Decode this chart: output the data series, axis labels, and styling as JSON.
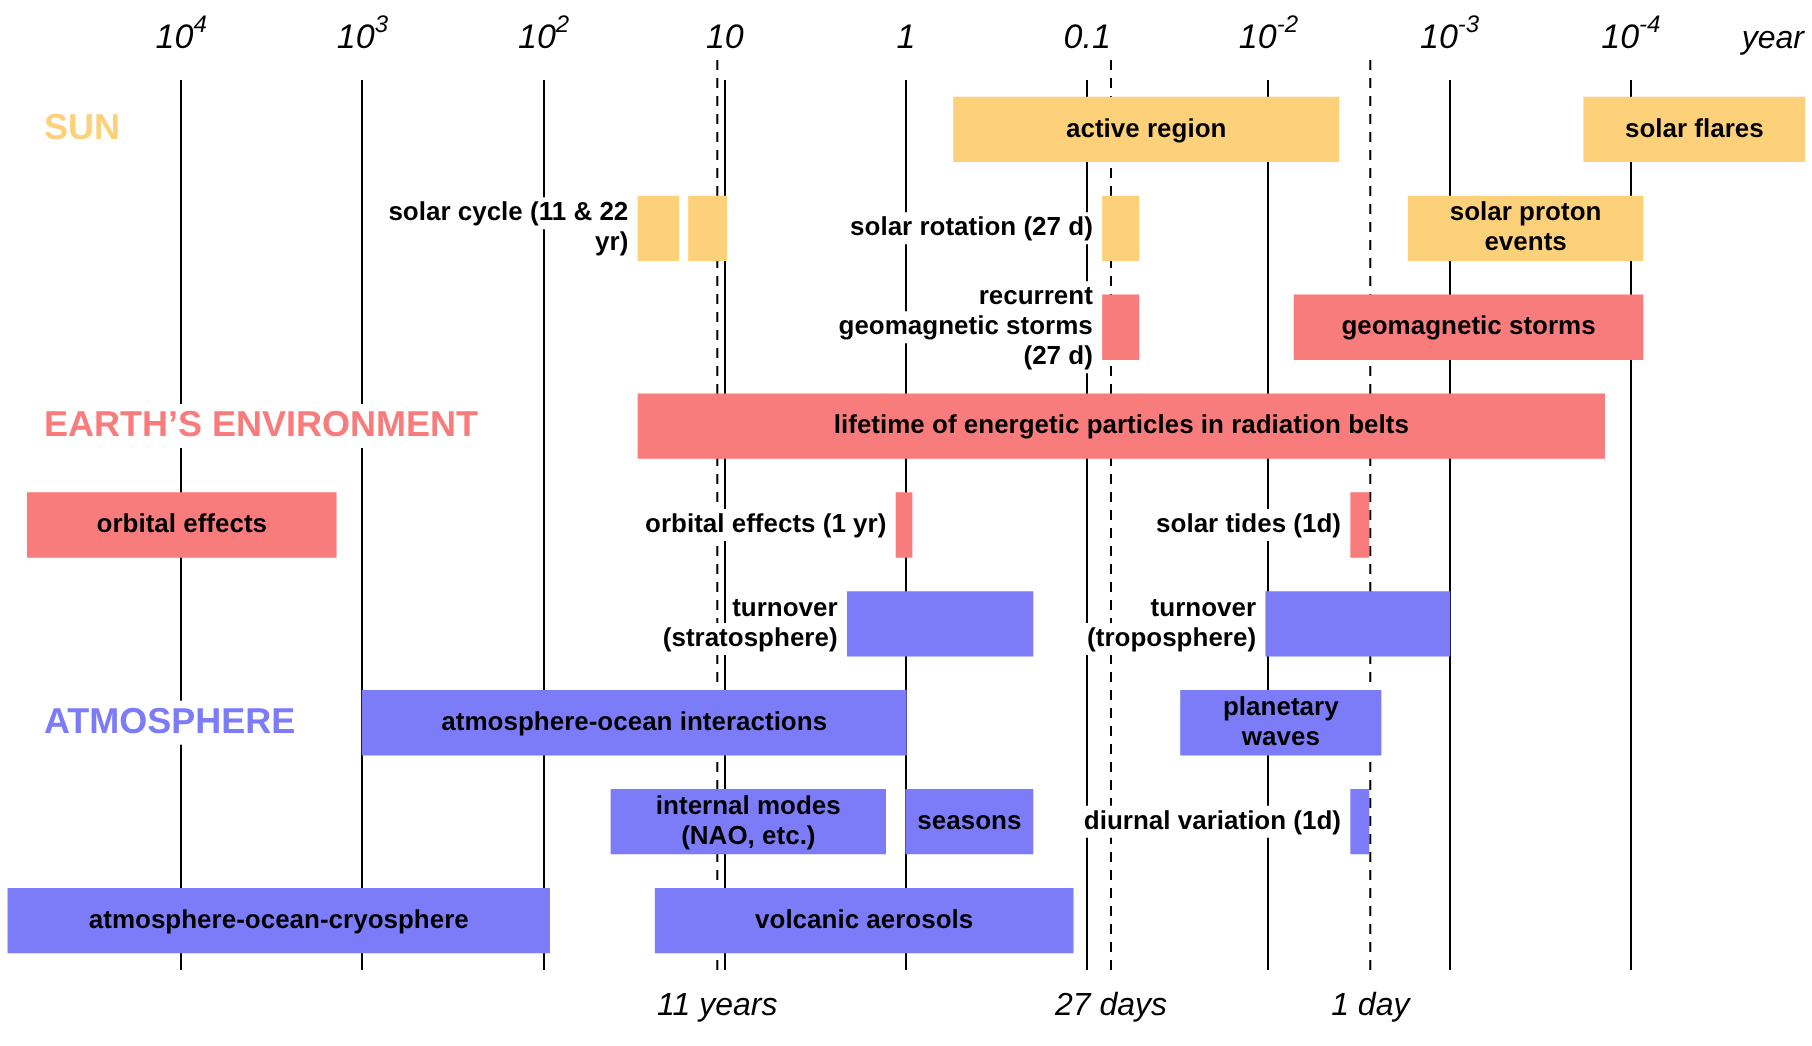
{
  "chart_data": {
    "type": "bar",
    "orientation": "horizontal",
    "xlabel": "year",
    "log": "x",
    "grid": "x",
    "categories": [
      null,
      null,
      null,
      null,
      null,
      null,
      null,
      null,
      null
    ],
    "xlim": [
      100000,
      1e-05
    ],
    "xticks": [
      {
        "value": 10000,
        "label": "10$^{4}$"
      },
      {
        "value": 1000,
        "label": "10$^{3}$"
      },
      {
        "value": 100,
        "label": "10$^{2}$"
      },
      10,
      1,
      0.1,
      {
        "value": 0.01,
        "label": "10$^{-2}$"
      },
      {
        "value": 0.001,
        "label": "10$^{-3}$"
      },
      {
        "value": 0.0001,
        "label": "10$^{-4}$"
      }
    ],
    "series": [
      {
        "name": "active region",
        "color": "#fdd17a",
        "values": [
          0.54,
          null,
          null,
          null,
          null,
          null,
          null,
          null,
          null
        ],
        "base": [
          0.0041,
          null,
          null,
          null,
          null,
          null,
          null,
          null,
          null
        ]
      },
      {
        "name": "solar flares",
        "color": "#fdd17a",
        "values": [
          0.00017,
          null,
          null,
          null,
          null,
          null,
          null,
          null,
          null
        ],
        "base": [
          1.1e-05,
          null,
          null,
          null,
          null,
          null,
          null,
          null,
          null
        ]
      },
      {
        "name": "solar cycle (11 & 22 yr)",
        "color": "#fdd17a",
        "values": [
          null,
          12,
          null,
          null,
          null,
          null,
          null,
          null,
          null
        ],
        "base": [
          null,
          18,
          null,
          null,
          null,
          null,
          null,
          null,
          null
        ]
      },
      {
        "color": "#fdd17a",
        "values": [
          null,
          6,
          null,
          null,
          null,
          null,
          null,
          null,
          null
        ],
        "base": [
          null,
          9.8,
          null,
          null,
          null,
          null,
          null,
          null,
          null
        ]
      },
      {
        "name": "solar rotation (27 d)",
        "color": "#fdd17a",
        "values": [
          null,
          0.03,
          null,
          null,
          null,
          null,
          null,
          null,
          null
        ],
        "base": [
          null,
          0.052,
          null,
          null,
          null,
          null,
          null,
          null,
          null
        ]
      },
      {
        "name": "solar proton events",
        "color": "#fdd17a",
        "values": [
          null,
          0.0016,
          null,
          null,
          null,
          null,
          null,
          null,
          null
        ],
        "base": [
          null,
          8.6e-05,
          null,
          null,
          null,
          null,
          null,
          null,
          null
        ]
      },
      {
        "name": "recurrent geomagnetic storms (27 d)",
        "color": "#f87c7c",
        "values": [
          null,
          null,
          0.03,
          null,
          null,
          null,
          null,
          null,
          null
        ],
        "base": [
          null,
          null,
          0.052,
          null,
          null,
          null,
          null,
          null,
          null
        ]
      },
      {
        "name": "geomagnetic storms",
        "color": "#f87c7c",
        "values": [
          null,
          null,
          0.0071,
          null,
          null,
          null,
          null,
          null,
          null
        ],
        "base": [
          null,
          null,
          8.6e-05,
          null,
          null,
          null,
          null,
          null,
          null
        ]
      },
      {
        "name": "lifetime of energetic particles in radiation belts",
        "color": "#f87c7c",
        "values": [
          null,
          null,
          null,
          30,
          null,
          null,
          null,
          null,
          null
        ],
        "base": [
          null,
          null,
          null,
          0.00014,
          null,
          null,
          null,
          null,
          null
        ]
      },
      {
        "name": "orbital effects",
        "color": "#f87c7c",
        "values": [
          null,
          null,
          null,
          null,
          69000,
          null,
          null,
          null,
          null
        ],
        "base": [
          null,
          null,
          null,
          null,
          1400,
          null,
          null,
          null,
          null
        ]
      },
      {
        "name": "orbital effects (1 yr)",
        "color": "#f87c7c",
        "values": [
          null,
          null,
          null,
          null,
          0.2,
          null,
          null,
          null,
          null
        ],
        "base": [
          null,
          null,
          null,
          null,
          0.93,
          null,
          null,
          null,
          null
        ]
      },
      {
        "name": "solar tides (1d)",
        "color": "#f87c7c",
        "values": [
          null,
          null,
          null,
          null,
          0.0007,
          null,
          null,
          null,
          null
        ],
        "base": [
          null,
          null,
          null,
          null,
          0.0028,
          null,
          null,
          null,
          null
        ]
      },
      {
        "name": "turnover (stratosphere)",
        "color": "#7c7cf8",
        "values": [
          null,
          null,
          null,
          null,
          null,
          1.9,
          null,
          null,
          null
        ],
        "base": [
          null,
          null,
          null,
          null,
          null,
          0.2,
          null,
          null,
          null
        ]
      },
      {
        "name": "turnover (troposphere)",
        "color": "#7c7cf8",
        "values": [
          null,
          null,
          null,
          null,
          null,
          0.0093,
          null,
          null,
          null
        ],
        "base": [
          null,
          null,
          null,
          null,
          null,
          0.001,
          null,
          null,
          null
        ]
      },
      {
        "name": "atmosphere-ocean interactions",
        "color": "#7c7cf8",
        "values": [
          null,
          null,
          null,
          null,
          null,
          null,
          999,
          null,
          null
        ],
        "base": [
          null,
          null,
          null,
          null,
          null,
          null,
          1,
          null,
          null
        ]
      },
      {
        "name": "planetary waves",
        "color": "#7c7cf8",
        "values": [
          null,
          null,
          null,
          null,
          null,
          null,
          0.028,
          null,
          null
        ],
        "base": [
          null,
          null,
          null,
          null,
          null,
          null,
          0.0024,
          null,
          null
        ]
      },
      {
        "name": "internal modes (NAO, etc.)",
        "color": "#7c7cf8",
        "values": [
          null,
          null,
          null,
          null,
          null,
          null,
          null,
          41,
          null
        ],
        "base": [
          null,
          null,
          null,
          null,
          null,
          null,
          null,
          1.3,
          null
        ]
      },
      {
        "name": "seasons",
        "color": "#7c7cf8",
        "values": [
          null,
          null,
          null,
          null,
          null,
          null,
          null,
          0.8,
          null
        ],
        "base": [
          null,
          null,
          null,
          null,
          null,
          null,
          null,
          0.2,
          null
        ]
      },
      {
        "name": "diurnal variation (1d)",
        "color": "#7c7cf8",
        "values": [
          null,
          null,
          null,
          null,
          null,
          null,
          null,
          0.0007,
          null
        ],
        "base": [
          null,
          null,
          null,
          null,
          null,
          null,
          null,
          0.0028,
          null
        ]
      },
      {
        "name": "atmosphere-ocean-cryosphere",
        "color": "#7c7cf8",
        "values": [
          null,
          null,
          null,
          null,
          null,
          null,
          null,
          null,
          90000
        ],
        "base": [
          null,
          null,
          null,
          null,
          null,
          null,
          null,
          null,
          93
        ]
      },
      {
        "name": "volcanic aerosols",
        "color": "#7c7cf8",
        "values": [
          null,
          null,
          null,
          null,
          null,
          null,
          null,
          null,
          24
        ],
        "base": [
          null,
          null,
          null,
          null,
          null,
          null,
          null,
          null,
          0.12
        ]
      }
    ],
    "ref_lines": [
      {
        "axis": "x",
        "value": 11,
        "label": "11 years",
        "line_style": "dashed"
      },
      {
        "axis": "x",
        "value": 0.0739,
        "label": "27 days",
        "line_style": "dashed"
      },
      {
        "axis": "x",
        "value": 0.00274,
        "label": "1 day",
        "line_style": "dashed"
      }
    ],
    "annotations": [
      "SUN",
      "EARTH’S ENVIRONMENT",
      "ATMOSPHERE"
    ]
  }
}
